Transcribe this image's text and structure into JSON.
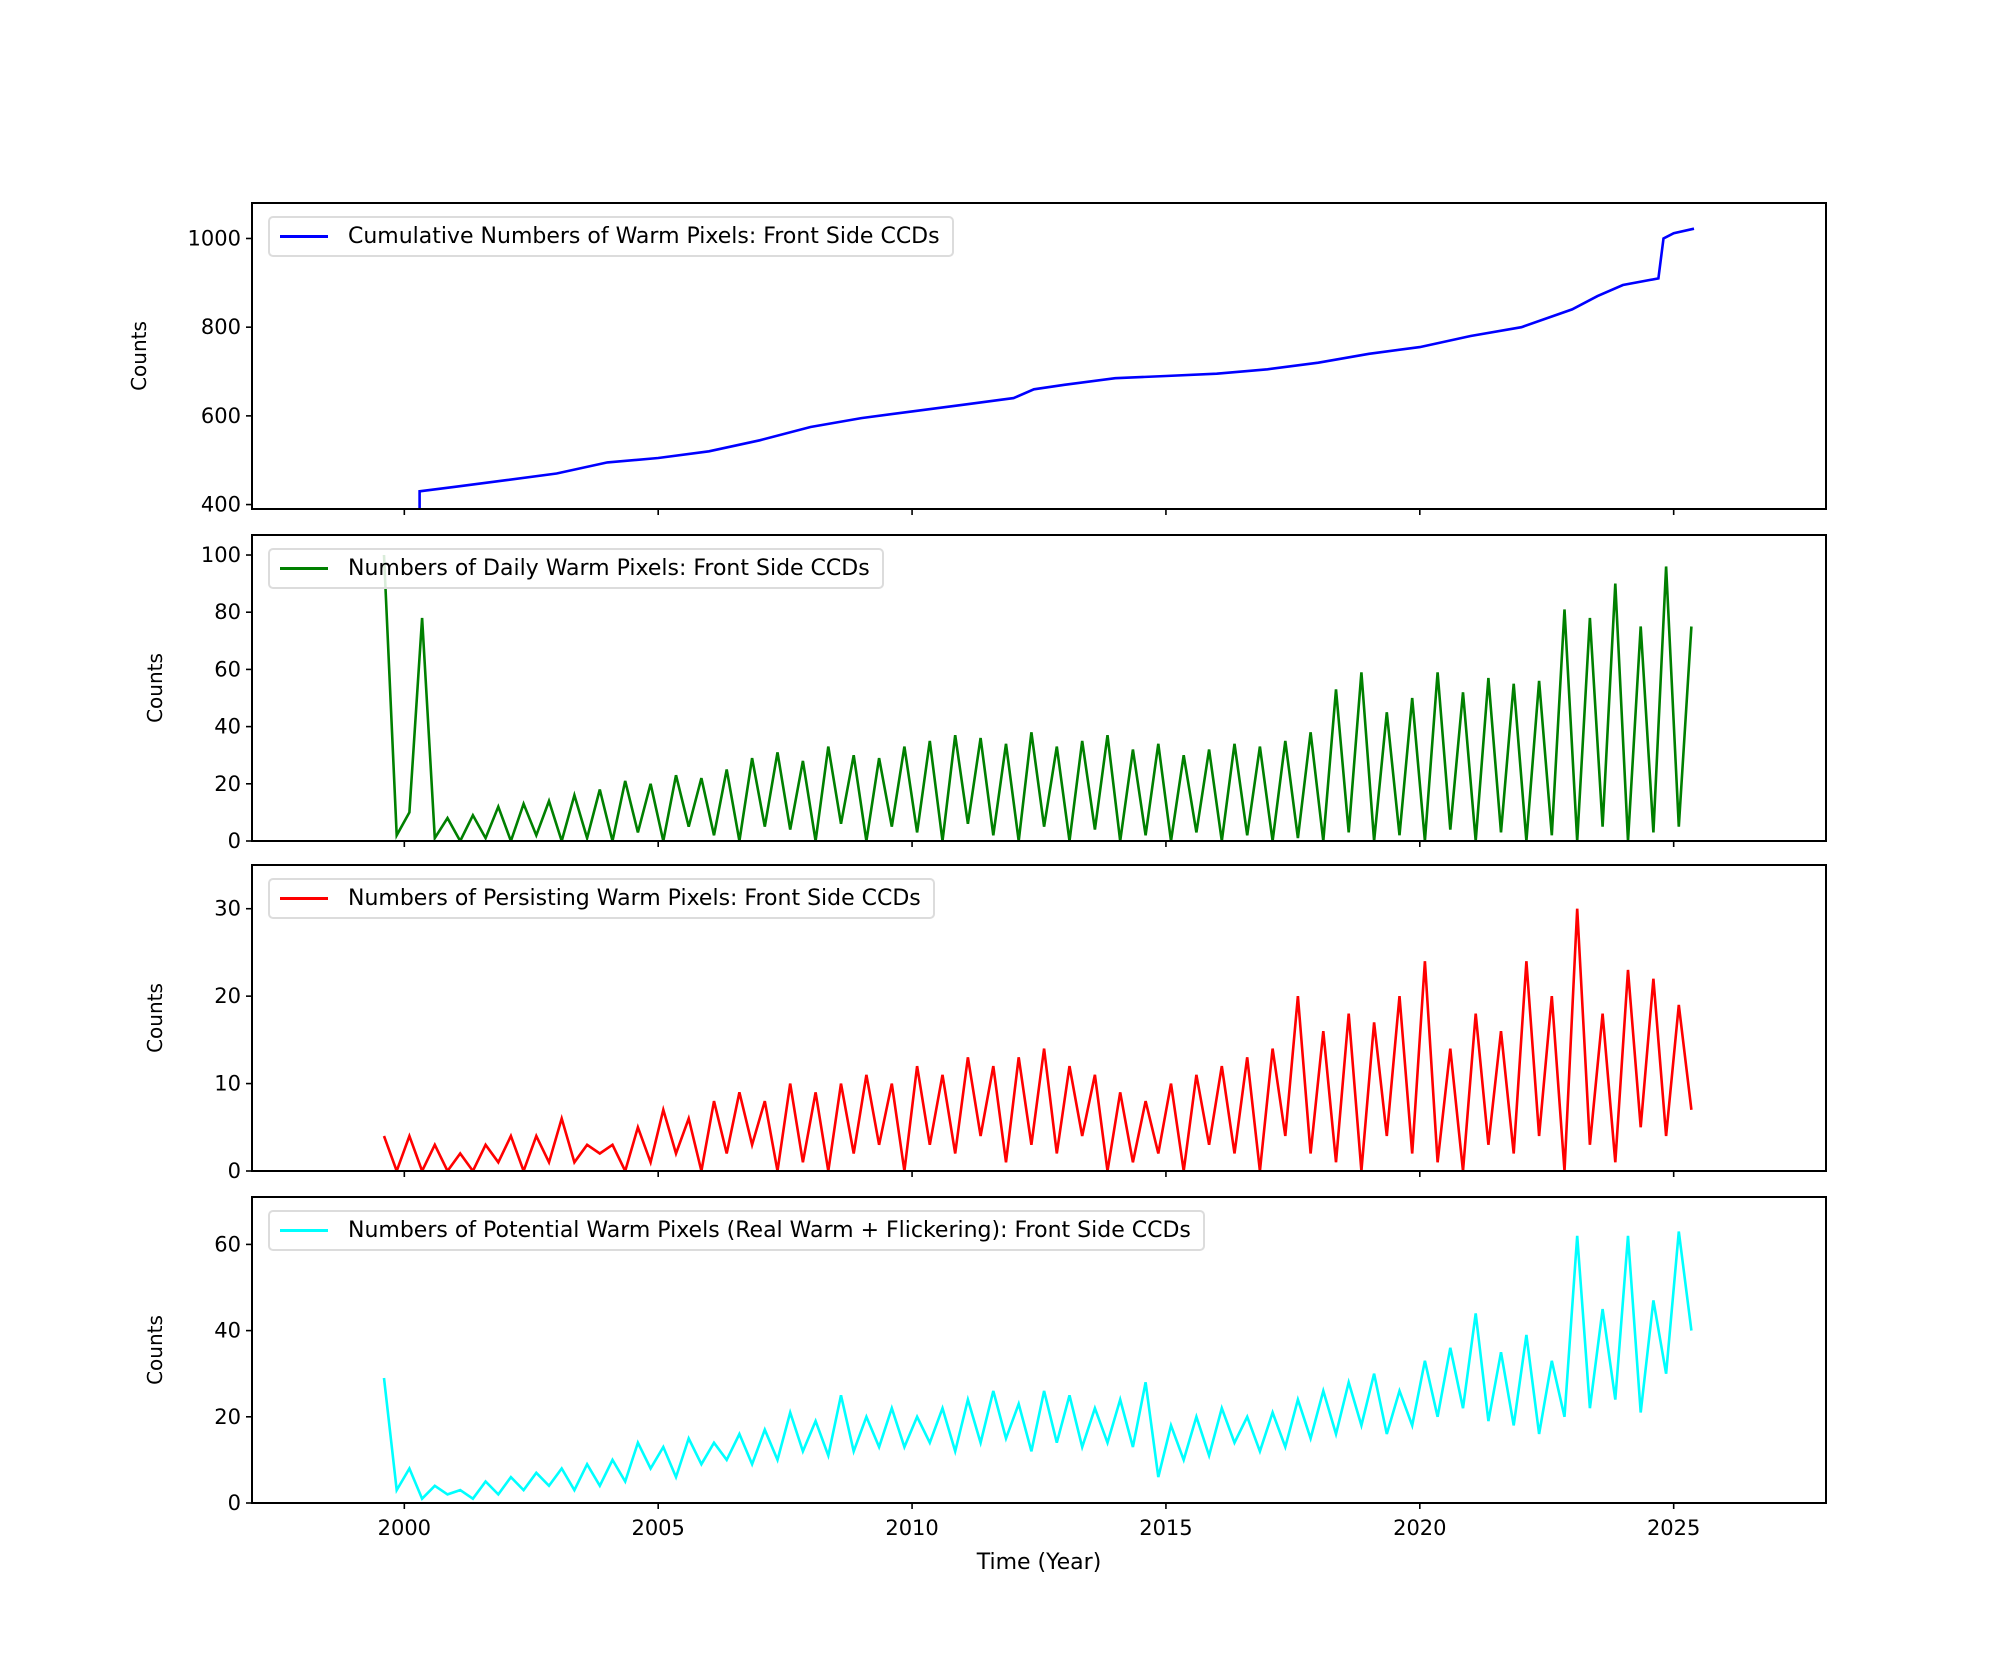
{
  "chart_data": [
    {
      "type": "line",
      "ylabel": "Counts",
      "xlim": [
        1997,
        2028
      ],
      "ylim": [
        390,
        1080
      ],
      "yticks": [
        400,
        600,
        800,
        1000
      ],
      "xticks": [
        2000,
        2005,
        2010,
        2015,
        2020,
        2025
      ],
      "grid": false,
      "legend_position": "top-left",
      "series": [
        {
          "name": "Cumulative Numbers of Warm Pixels: Front Side CCDs",
          "color": "#0000ff",
          "x": [
            2000.3,
            2000.3,
            2001,
            2002,
            2003,
            2004,
            2005,
            2006,
            2007,
            2008,
            2009,
            2010,
            2011,
            2012,
            2012.4,
            2013,
            2014,
            2015,
            2016,
            2017,
            2018,
            2019,
            2020,
            2021,
            2022,
            2023,
            2023.5,
            2024,
            2024.7,
            2024.8,
            2025,
            2025.4
          ],
          "y": [
            390,
            430,
            440,
            455,
            470,
            495,
            505,
            520,
            545,
            575,
            595,
            610,
            625,
            640,
            660,
            670,
            685,
            690,
            695,
            705,
            720,
            740,
            755,
            780,
            800,
            840,
            870,
            895,
            910,
            1000,
            1012,
            1022
          ]
        }
      ]
    },
    {
      "type": "line",
      "ylabel": "Counts",
      "xlim": [
        1997,
        2028
      ],
      "ylim": [
        0,
        107
      ],
      "yticks": [
        0,
        20,
        40,
        60,
        80,
        100
      ],
      "xticks": [
        2000,
        2005,
        2010,
        2015,
        2020,
        2025
      ],
      "grid": false,
      "legend_position": "top-left",
      "series": [
        {
          "name": "Numbers of Daily Warm Pixels: Front Side CCDs",
          "color": "#008000",
          "y": [
            100,
            2,
            10,
            78,
            1,
            8,
            0,
            9,
            1,
            12,
            0,
            13,
            2,
            14,
            0,
            16,
            1,
            18,
            0,
            21,
            3,
            20,
            0,
            23,
            5,
            22,
            2,
            25,
            0,
            29,
            5,
            31,
            4,
            28,
            0,
            33,
            6,
            30,
            0,
            29,
            5,
            33,
            3,
            35,
            0,
            37,
            6,
            36,
            2,
            34,
            0,
            38,
            5,
            33,
            0,
            35,
            4,
            37,
            0,
            32,
            2,
            34,
            0,
            30,
            3,
            32,
            0,
            34,
            2,
            33,
            0,
            35,
            1,
            38,
            0,
            53,
            3,
            59,
            0,
            45,
            2,
            50,
            0,
            59,
            4,
            52,
            0,
            57,
            3,
            55,
            0,
            56,
            2,
            81,
            0,
            78,
            5,
            90,
            0,
            75,
            3,
            96,
            5,
            75
          ]
        }
      ]
    },
    {
      "type": "line",
      "ylabel": "Counts",
      "xlim": [
        1997,
        2028
      ],
      "ylim": [
        0,
        35
      ],
      "yticks": [
        0,
        10,
        20,
        30
      ],
      "xticks": [
        2000,
        2005,
        2010,
        2015,
        2020,
        2025
      ],
      "grid": false,
      "legend_position": "top-left",
      "series": [
        {
          "name": "Numbers of Persisting Warm Pixels: Front Side CCDs",
          "color": "#ff0000",
          "y": [
            4,
            0,
            4,
            0,
            3,
            0,
            2,
            0,
            3,
            1,
            4,
            0,
            4,
            1,
            6,
            1,
            3,
            2,
            3,
            0,
            5,
            1,
            7,
            2,
            6,
            0,
            8,
            2,
            9,
            3,
            8,
            0,
            10,
            1,
            9,
            0,
            10,
            2,
            11,
            3,
            10,
            0,
            12,
            3,
            11,
            2,
            13,
            4,
            12,
            1,
            13,
            3,
            14,
            2,
            12,
            4,
            11,
            0,
            9,
            1,
            8,
            2,
            10,
            0,
            11,
            3,
            12,
            2,
            13,
            0,
            14,
            4,
            20,
            2,
            16,
            1,
            18,
            0,
            17,
            4,
            20,
            2,
            24,
            1,
            14,
            0,
            18,
            3,
            16,
            2,
            24,
            4,
            20,
            0,
            30,
            3,
            18,
            1,
            23,
            5,
            22,
            4,
            19,
            7
          ]
        }
      ]
    },
    {
      "type": "line",
      "ylabel": "Counts",
      "xlabel": "Time (Year)",
      "xlim": [
        1997,
        2028
      ],
      "ylim": [
        0,
        71
      ],
      "yticks": [
        0,
        20,
        40,
        60
      ],
      "xticks": [
        2000,
        2005,
        2010,
        2015,
        2020,
        2025
      ],
      "grid": false,
      "legend_position": "top-left",
      "series": [
        {
          "name": "Numbers of Potential Warm Pixels (Real Warm + Flickering): Front Side CCDs",
          "color": "#00ffff",
          "y": [
            29,
            3,
            8,
            1,
            4,
            2,
            3,
            1,
            5,
            2,
            6,
            3,
            7,
            4,
            8,
            3,
            9,
            4,
            10,
            5,
            14,
            8,
            13,
            6,
            15,
            9,
            14,
            10,
            16,
            9,
            17,
            10,
            21,
            12,
            19,
            11,
            25,
            12,
            20,
            13,
            22,
            13,
            20,
            14,
            22,
            12,
            24,
            14,
            26,
            15,
            23,
            12,
            26,
            14,
            25,
            13,
            22,
            14,
            24,
            13,
            28,
            6,
            18,
            10,
            20,
            11,
            22,
            14,
            20,
            12,
            21,
            13,
            24,
            15,
            26,
            16,
            28,
            18,
            30,
            16,
            26,
            18,
            33,
            20,
            36,
            22,
            44,
            19,
            35,
            18,
            39,
            16,
            33,
            20,
            62,
            22,
            45,
            24,
            62,
            21,
            47,
            30,
            63,
            40
          ]
        }
      ]
    }
  ],
  "shared_x": [
    1999.6,
    1999.85,
    2000.1,
    2000.35,
    2000.6,
    2000.85,
    2001.1,
    2001.35,
    2001.6,
    2001.85,
    2002.1,
    2002.35,
    2002.6,
    2002.85,
    2003.1,
    2003.35,
    2003.6,
    2003.85,
    2004.1,
    2004.35,
    2004.6,
    2004.85,
    2005.1,
    2005.35,
    2005.6,
    2005.85,
    2006.1,
    2006.35,
    2006.6,
    2006.85,
    2007.1,
    2007.35,
    2007.6,
    2007.85,
    2008.1,
    2008.35,
    2008.6,
    2008.85,
    2009.1,
    2009.35,
    2009.6,
    2009.85,
    2010.1,
    2010.35,
    2010.6,
    2010.85,
    2011.1,
    2011.35,
    2011.6,
    2011.85,
    2012.1,
    2012.35,
    2012.6,
    2012.85,
    2013.1,
    2013.35,
    2013.6,
    2013.85,
    2014.1,
    2014.35,
    2014.6,
    2014.85,
    2015.1,
    2015.35,
    2015.6,
    2015.85,
    2016.1,
    2016.35,
    2016.6,
    2016.85,
    2017.1,
    2017.35,
    2017.6,
    2017.85,
    2018.1,
    2018.35,
    2018.6,
    2018.85,
    2019.1,
    2019.35,
    2019.6,
    2019.85,
    2020.1,
    2020.35,
    2020.6,
    2020.85,
    2021.1,
    2021.35,
    2021.6,
    2021.85,
    2022.1,
    2022.35,
    2022.6,
    2022.85,
    2023.1,
    2023.35,
    2023.6,
    2023.85,
    2024.1,
    2024.35,
    2024.6,
    2024.85,
    2025.1,
    2025.35
  ]
}
